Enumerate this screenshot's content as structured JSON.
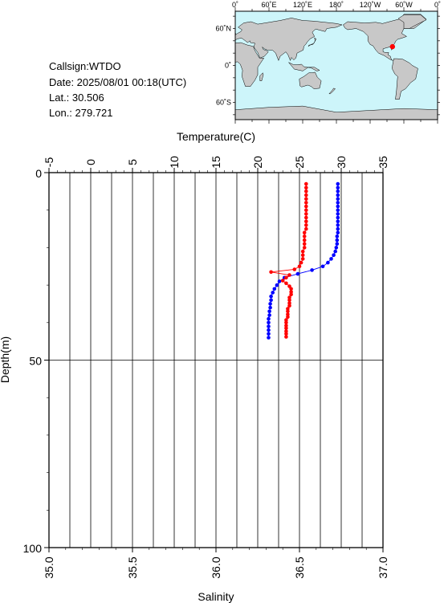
{
  "info": {
    "callsign": "Callsign:WTDO",
    "date": "Date:  2025/08/01 00:18(UTC)",
    "lat": "Lat.:   30.506",
    "lon": "Lon.:  279.721"
  },
  "map": {
    "top_ticks": [
      "0˚",
      "60˚E",
      "120˚E",
      "180˚",
      "120˚W",
      "60˚W",
      "0˚"
    ],
    "left_ticks": [
      "60˚N",
      "0˚",
      "60˚S"
    ],
    "ocean_color": "#cdf5fa",
    "land_color": "#c8c8c8",
    "marker_color": "#ff0000",
    "marker": {
      "lon": 279.721,
      "lat": 30.506
    }
  },
  "chart_data": {
    "type": "line",
    "top_axis": {
      "label": "Temperature(C)",
      "range": [
        -5,
        35
      ],
      "ticks": [
        "-5",
        "0",
        "5",
        "10",
        "15",
        "20",
        "25",
        "30",
        "35"
      ]
    },
    "bottom_axis": {
      "label": "Salinity",
      "range": [
        35.0,
        37.0
      ],
      "ticks": [
        "35.0",
        "35.5",
        "36.0",
        "36.5",
        "37.0"
      ]
    },
    "y_axis": {
      "label": "Depth(m)",
      "range": [
        0,
        100
      ],
      "inverted": true,
      "ticks": [
        "0",
        "50",
        "100"
      ]
    },
    "series": [
      {
        "quantity": "temperature",
        "color": "#0000ff",
        "depth": [
          3,
          4,
          5,
          6,
          7,
          8,
          9,
          10,
          11,
          12,
          13,
          14,
          15,
          16,
          17,
          18,
          19,
          20,
          21,
          22,
          23,
          24,
          25,
          26,
          27,
          28,
          29,
          30,
          31,
          32,
          33,
          34,
          35,
          36,
          37,
          38,
          39,
          40,
          41,
          42,
          43,
          44
        ],
        "values": [
          29.6,
          29.6,
          29.6,
          29.6,
          29.6,
          29.6,
          29.6,
          29.6,
          29.6,
          29.6,
          29.6,
          29.6,
          29.6,
          29.6,
          29.5,
          29.5,
          29.5,
          29.4,
          29.3,
          29.1,
          28.8,
          28.4,
          27.8,
          26.5,
          24.8,
          23.2,
          22.6,
          22.3,
          22.0,
          21.8,
          21.6,
          21.6,
          21.5,
          21.5,
          21.4,
          21.4,
          21.3,
          21.3,
          21.3,
          21.3,
          21.3,
          21.3
        ]
      },
      {
        "quantity": "salinity",
        "color": "#ff0000",
        "depth": [
          3,
          4,
          5,
          6,
          7,
          8,
          9,
          10,
          11,
          12,
          13,
          14,
          15,
          16,
          17,
          18,
          19,
          20,
          21,
          22,
          23,
          24,
          25,
          25.8,
          26.5,
          27.3,
          28,
          28.8,
          29.5,
          30.3,
          31,
          31.8,
          32.5,
          33.3,
          34,
          34.8,
          35.5,
          36.3,
          37,
          37.8,
          38.5,
          39.3,
          40,
          40.8,
          41.5,
          42.3,
          43,
          43.8
        ],
        "values": [
          36.54,
          36.54,
          36.54,
          36.54,
          36.54,
          36.54,
          36.54,
          36.54,
          36.54,
          36.54,
          36.54,
          36.54,
          36.54,
          36.53,
          36.53,
          36.53,
          36.53,
          36.53,
          36.52,
          36.52,
          36.52,
          36.51,
          36.5,
          36.47,
          36.33,
          36.44,
          36.42,
          36.4,
          36.42,
          36.44,
          36.45,
          36.45,
          36.45,
          36.44,
          36.44,
          36.44,
          36.44,
          36.43,
          36.43,
          36.43,
          36.43,
          36.42,
          36.42,
          36.42,
          36.42,
          36.42,
          36.42,
          36.42
        ]
      }
    ],
    "grid": true,
    "vertical_gridlines": 16
  }
}
